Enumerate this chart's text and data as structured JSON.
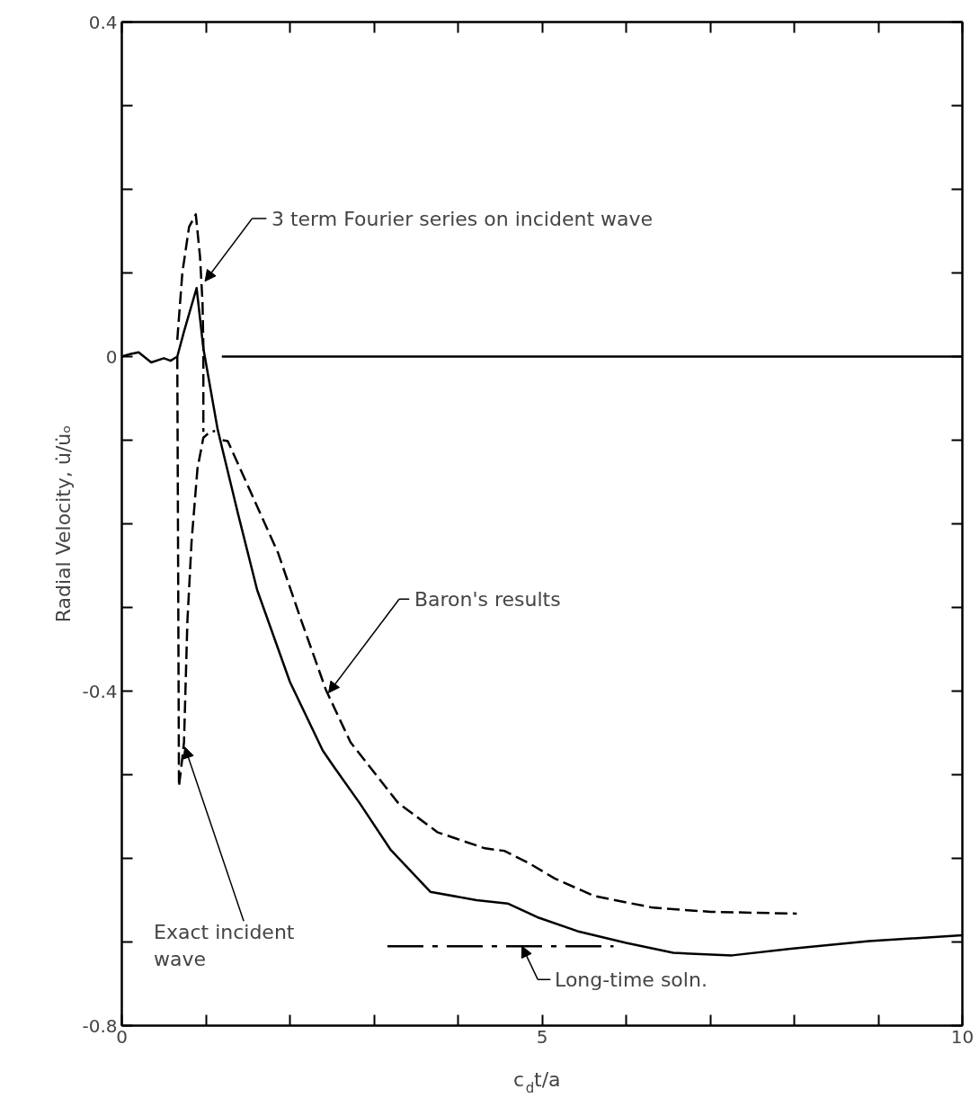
{
  "chart_data": {
    "type": "line",
    "xlabel": "c$_{d}$t/a",
    "ylabel": "Radial Velocity, u̇/u̇ₒ",
    "xlim": [
      0,
      10
    ],
    "ylim": [
      -0.8,
      0.4
    ],
    "xticks": [
      0,
      {
        "value": 1,
        "label": null
      },
      {
        "value": 2,
        "label": null
      },
      {
        "value": 3,
        "label": null
      },
      {
        "value": 4,
        "label": null
      },
      5,
      {
        "value": 6,
        "label": null
      },
      {
        "value": 7,
        "label": null
      },
      {
        "value": 8,
        "label": null
      },
      {
        "value": 9,
        "label": null
      },
      10
    ],
    "yticks": [
      -0.8,
      {
        "value": -0.7,
        "label": null
      },
      {
        "value": -0.6,
        "label": null
      },
      {
        "value": -0.5,
        "label": null
      },
      -0.4,
      {
        "value": -0.3,
        "label": null
      },
      {
        "value": -0.2,
        "label": null
      },
      {
        "value": -0.1,
        "label": null
      },
      0,
      {
        "value": 0.1,
        "label": null
      },
      {
        "value": 0.2,
        "label": null
      },
      {
        "value": 0.3,
        "label": null
      },
      0.4
    ],
    "grid": false,
    "series": [
      {
        "color": "#000000",
        "line_style": "solid",
        "x": [
          0,
          0.1,
          0.2,
          0.35,
          0.5,
          0.58,
          0.66,
          0.74,
          0.89,
          0.97,
          1.14,
          1.38,
          1.61,
          2.0,
          2.39,
          2.52,
          2.83,
          3.2,
          3.67,
          4.22,
          4.59,
          4.96,
          5.42,
          6.0,
          6.56,
          7.26,
          7.96,
          8.89,
          10.0
        ],
        "values": [
          0,
          0.003,
          0.005,
          -0.007,
          -0.002,
          -0.005,
          0.0,
          0.03,
          0.082,
          0.01,
          -0.087,
          -0.187,
          -0.279,
          -0.389,
          -0.471,
          -0.49,
          -0.534,
          -0.59,
          -0.64,
          -0.65,
          -0.654,
          -0.671,
          -0.687,
          -0.701,
          -0.713,
          -0.716,
          -0.708,
          -0.699,
          -0.692
        ]
      },
      {
        "color": "#000000",
        "line_style": "solid",
        "x": [
          1.19,
          10
        ],
        "values": [
          0,
          0
        ]
      },
      {
        "color": "#000000",
        "line_style": "dashed",
        "x": [
          0.66,
          0.72,
          0.8,
          0.88,
          0.93,
          0.96,
          0.97,
          0.97
        ],
        "values": [
          0.02,
          0.1,
          0.155,
          0.17,
          0.12,
          0.065,
          0.014,
          -0.09
        ]
      },
      {
        "color": "#000000",
        "line_style": "dashed",
        "x": [
          0.66,
          0.67,
          0.68,
          0.72,
          0.74,
          0.78,
          0.83,
          0.9,
          0.97,
          1.05,
          1.11
        ],
        "values": [
          0.0,
          -0.25,
          -0.514,
          -0.48,
          -0.461,
          -0.317,
          -0.221,
          -0.134,
          -0.097,
          -0.09,
          -0.089
        ]
      },
      {
        "color": "#000000",
        "line_style": "dashed",
        "x": [
          1.2,
          1.26,
          1.52,
          1.86,
          2.14,
          2.43,
          2.72,
          3.29,
          3.76,
          4.32,
          4.55,
          4.83,
          5.15,
          5.62,
          6.32,
          7.01,
          8.03
        ],
        "values": [
          -0.1,
          -0.101,
          -0.159,
          -0.235,
          -0.317,
          -0.399,
          -0.461,
          -0.534,
          -0.569,
          -0.588,
          -0.591,
          -0.605,
          -0.624,
          -0.645,
          -0.659,
          -0.664,
          -0.666
        ]
      },
      {
        "color": "#000000",
        "line_style": "dashdot",
        "x": [
          3.16,
          5.85
        ],
        "values": [
          -0.705,
          -0.705
        ]
      }
    ],
    "annotations": [
      {
        "text": "3 term Fourier series on incident wave",
        "x": 0.99,
        "y": 0.09
      },
      {
        "text": "Baron's results",
        "x": 2.46,
        "y": -0.402
      },
      {
        "text": "Exact incident\nwave",
        "x": 0.75,
        "y": -0.467
      },
      {
        "text": "Long-time soln.",
        "x": 4.76,
        "y": -0.705
      }
    ]
  }
}
